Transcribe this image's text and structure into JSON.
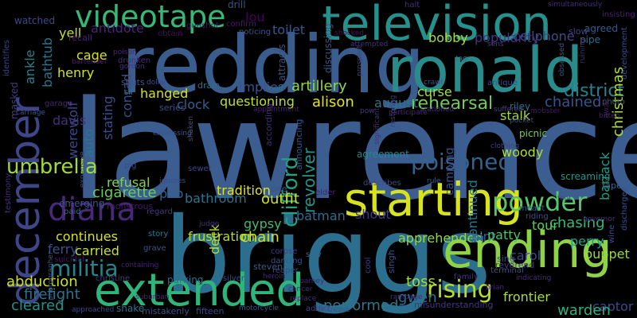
{
  "words": [
    {
      "text": "lawrence",
      "color": "#3b5d8f"
    },
    {
      "text": "briggs",
      "color": "#2c6e8e"
    },
    {
      "text": "redding",
      "color": "#3a5d8e"
    },
    {
      "text": "ronald",
      "color": "#2a8b8b"
    },
    {
      "text": "television",
      "color": "#25908c"
    },
    {
      "text": "starting",
      "color": "#d7e31f"
    },
    {
      "text": "ending",
      "color": "#8ed247"
    },
    {
      "text": "extended",
      "color": "#2fb47c"
    },
    {
      "text": "december",
      "color": "#3f4688"
    },
    {
      "text": "videotape",
      "color": "#37b778"
    },
    {
      "text": "diana",
      "color": "#482879"
    },
    {
      "text": "powder",
      "color": "#56c667"
    },
    {
      "text": "rising",
      "color": "#b5de2b"
    },
    {
      "text": "poisoned",
      "color": "#33638d"
    },
    {
      "text": "militia",
      "color": "#24868e"
    },
    {
      "text": "umbrella",
      "color": "#a0da39"
    },
    {
      "text": "frustration",
      "color": "#b8de29"
    },
    {
      "text": "apprehended",
      "color": "#95d840"
    },
    {
      "text": "clifford",
      "color": "#1fa188"
    },
    {
      "text": "revolver",
      "color": "#1f958b"
    },
    {
      "text": "rehearsal",
      "color": "#6ece58"
    },
    {
      "text": "artillery",
      "color": "#8ed645"
    },
    {
      "text": "questioning",
      "color": "#c2df23"
    },
    {
      "text": "tradition",
      "color": "#e2e418"
    },
    {
      "text": "alison",
      "color": "#e5e419"
    },
    {
      "text": "cellphone",
      "color": "#3e4a89"
    },
    {
      "text": "district",
      "color": "#26828e"
    },
    {
      "text": "chained",
      "color": "#3b528b"
    },
    {
      "text": "christmas",
      "color": "#b2dd2d"
    },
    {
      "text": "barrack",
      "color": "#1f9e89"
    },
    {
      "text": "chasing",
      "color": "#35b779"
    },
    {
      "text": "tour",
      "color": "#5ec962"
    },
    {
      "text": "perry",
      "color": "#1fa088"
    },
    {
      "text": "puppet",
      "color": "#9bd93c"
    },
    {
      "text": "frontier",
      "color": "#aadc32"
    },
    {
      "text": "captor",
      "color": "#3f4788"
    },
    {
      "text": "warden",
      "color": "#2db27d"
    },
    {
      "text": "gwen",
      "color": "#2d708e"
    },
    {
      "text": "performed",
      "color": "#2a788e"
    },
    {
      "text": "toss",
      "color": "#a2da37"
    },
    {
      "text": "abduction",
      "color": "#d0e11c"
    },
    {
      "text": "firefight",
      "color": "#2c738e"
    },
    {
      "text": "cleared",
      "color": "#21918c"
    },
    {
      "text": "carried",
      "color": "#c8e020"
    },
    {
      "text": "continues",
      "color": "#d8e219"
    },
    {
      "text": "ferry",
      "color": "#3b518b"
    },
    {
      "text": "cigarette",
      "color": "#69cd5b"
    },
    {
      "text": "refusal",
      "color": "#81d34d"
    },
    {
      "text": "outfit",
      "color": "#cde11d"
    },
    {
      "text": "batman",
      "color": "#2f6c8e"
    },
    {
      "text": "shout",
      "color": "#443983"
    },
    {
      "text": "gypsy",
      "color": "#3dbc74"
    },
    {
      "text": "chain",
      "color": "#d2e21b"
    },
    {
      "text": "deck",
      "color": "#b5de2b"
    },
    {
      "text": "bathroom",
      "color": "#2c738e"
    },
    {
      "text": "pub",
      "color": "#33628d"
    },
    {
      "text": "hanged",
      "color": "#d8e219"
    },
    {
      "text": "clock",
      "color": "#355f8d"
    },
    {
      "text": "implies",
      "color": "#39558c"
    },
    {
      "text": "stating",
      "color": "#3e4c8a"
    },
    {
      "text": "auto",
      "color": "#2a768e"
    },
    {
      "text": "werewolf",
      "color": "#3e4989"
    },
    {
      "text": "davis",
      "color": "#46317e"
    },
    {
      "text": "henry",
      "color": "#d2e21b"
    },
    {
      "text": "cage",
      "color": "#d8e219"
    },
    {
      "text": "yell",
      "color": "#c5e021"
    },
    {
      "text": "bathtub",
      "color": "#2a788e"
    },
    {
      "text": "ankle",
      "color": "#277f8e"
    },
    {
      "text": "lou",
      "color": "#440154"
    },
    {
      "text": "antidote",
      "color": "#482475"
    },
    {
      "text": "bobby",
      "color": "#a8db34"
    },
    {
      "text": "popularity",
      "color": "#46337f"
    },
    {
      "text": "toilet",
      "color": "#39568c"
    },
    {
      "text": "august",
      "color": "#2b748e"
    },
    {
      "text": "curse",
      "color": "#a5db36"
    },
    {
      "text": "stalk",
      "color": "#a0da39"
    },
    {
      "text": "conrad",
      "color": "#3c4f8a"
    },
    {
      "text": "woody",
      "color": "#b0dd2f"
    },
    {
      "text": "hint",
      "color": "#32658e"
    },
    {
      "text": "patty",
      "color": "#4ac16d"
    },
    {
      "text": "carol",
      "color": "#3e4989"
    },
    {
      "text": "continued",
      "color": "#29798e"
    },
    {
      "text": "camping",
      "color": "#3b518b"
    },
    {
      "text": "screaming",
      "color": "#1f978b"
    },
    {
      "text": "picnic",
      "color": "#73d056"
    },
    {
      "text": "agreement",
      "color": "#23888e"
    },
    {
      "text": "drill",
      "color": "#3b528b"
    },
    {
      "text": "watched",
      "color": "#3e4a89"
    },
    {
      "text": "recall",
      "color": "#482576"
    },
    {
      "text": "obtain",
      "color": "#470e61"
    },
    {
      "text": "gunshot",
      "color": "#481b6d"
    },
    {
      "text": "confirm",
      "color": "#481a6c"
    },
    {
      "text": "noticing",
      "color": "#3b528b"
    },
    {
      "text": "attracts",
      "color": "#3e4c8a"
    },
    {
      "text": "discussing",
      "color": "#3a548c"
    },
    {
      "text": "agreed",
      "color": "#375a8c"
    },
    {
      "text": "slow",
      "color": "#414487"
    },
    {
      "text": "pipe",
      "color": "#2f6c8e"
    },
    {
      "text": "tape",
      "color": "#31668e"
    },
    {
      "text": "halt",
      "color": "#46307e"
    },
    {
      "text": "simultaneously",
      "color": "#482979"
    },
    {
      "text": "insisting",
      "color": "#482173"
    },
    {
      "text": "development",
      "color": "#3e4a89"
    },
    {
      "text": "identifies",
      "color": "#424086"
    },
    {
      "text": "bartender",
      "color": "#481d6f"
    },
    {
      "text": "poison",
      "color": "#482777"
    },
    {
      "text": "drunken",
      "color": "#472d7b"
    },
    {
      "text": "gordon",
      "color": "#46327e"
    },
    {
      "text": "shocked",
      "color": "#471063"
    },
    {
      "text": "attempted",
      "color": "#46307e"
    },
    {
      "text": "prospect",
      "color": "#433e85"
    },
    {
      "text": "tag",
      "color": "#2e6e8e"
    },
    {
      "text": "sens",
      "color": "#443a83"
    },
    {
      "text": "obsessed",
      "color": "#38588c"
    },
    {
      "text": "ruining",
      "color": "#472c7a"
    },
    {
      "text": "carriage",
      "color": "#3a548c"
    },
    {
      "text": "garage",
      "color": "#482677"
    },
    {
      "text": "masked",
      "color": "#433d84"
    },
    {
      "text": "testimony",
      "color": "#472c7a"
    },
    {
      "text": "photographer",
      "color": "#39568c"
    },
    {
      "text": "expensive",
      "color": "#3f4788"
    },
    {
      "text": "shuts",
      "color": "#3b528b"
    },
    {
      "text": "sir",
      "color": "#2c718e"
    },
    {
      "text": "series",
      "color": "#3c4f8a"
    },
    {
      "text": "dollar",
      "color": "#3d4e8a"
    },
    {
      "text": "drain",
      "color": "#2e6f8e"
    },
    {
      "text": "loud",
      "color": "#2a788e"
    },
    {
      "text": "appointment",
      "color": "#481f70"
    },
    {
      "text": "participate",
      "color": "#482576"
    },
    {
      "text": "crawl",
      "color": "#3b528b"
    },
    {
      "text": "antique",
      "color": "#3e4c8a"
    },
    {
      "text": "riley",
      "color": "#2d718e"
    },
    {
      "text": "photo",
      "color": "#3a548c"
    },
    {
      "text": "mobster",
      "color": "#481668"
    },
    {
      "text": "await",
      "color": "#481b6d"
    },
    {
      "text": "bitten",
      "color": "#482071"
    },
    {
      "text": "stationed",
      "color": "#472a7a"
    },
    {
      "text": "pow",
      "color": "#443983"
    },
    {
      "text": "restoring",
      "color": "#453781"
    },
    {
      "text": "pocket",
      "color": "#3f4889"
    },
    {
      "text": "suffered",
      "color": "#424186"
    },
    {
      "text": "clothing",
      "color": "#433e85"
    },
    {
      "text": "significant",
      "color": "#472e7c"
    },
    {
      "text": "shaken",
      "color": "#3b528b"
    },
    {
      "text": "expressing",
      "color": "#39568c"
    },
    {
      "text": "announcing",
      "color": "#3a548c"
    },
    {
      "text": "according",
      "color": "#482878"
    },
    {
      "text": "pig",
      "color": "#3e4989"
    },
    {
      "text": "sewer",
      "color": "#404688"
    },
    {
      "text": "bee",
      "color": "#3b528b"
    },
    {
      "text": "elder",
      "color": "#482071"
    },
    {
      "text": "describes",
      "color": "#3e4989"
    },
    {
      "text": "rule",
      "color": "#35608d"
    },
    {
      "text": "emerging",
      "color": "#3b528b"
    },
    {
      "text": "paid",
      "color": "#31688e"
    },
    {
      "text": "monstrous",
      "color": "#481769"
    },
    {
      "text": "ignores",
      "color": "#3d4e8a"
    },
    {
      "text": "regard",
      "color": "#443983"
    },
    {
      "text": "story",
      "color": "#2a788e"
    },
    {
      "text": "grave",
      "color": "#3b528b"
    },
    {
      "text": "judge",
      "color": "#46307e"
    },
    {
      "text": "corpse",
      "color": "#433e85"
    },
    {
      "text": "dancing",
      "color": "#3a548c"
    },
    {
      "text": "reaper",
      "color": "#3f4889"
    },
    {
      "text": "saw",
      "color": "#2f6b8e"
    },
    {
      "text": "steven",
      "color": "#38598c"
    },
    {
      "text": "singh",
      "color": "#3e4c8a"
    },
    {
      "text": "terminal",
      "color": "#3d4e8a"
    },
    {
      "text": "meant",
      "color": "#35608d"
    },
    {
      "text": "riding",
      "color": "#3c4f8a"
    },
    {
      "text": "governor",
      "color": "#46307e"
    },
    {
      "text": "foot",
      "color": "#3e4a89"
    },
    {
      "text": "discharged",
      "color": "#3b528b"
    },
    {
      "text": "wine",
      "color": "#3e4c8a"
    },
    {
      "text": "indicating",
      "color": "#472c7a"
    },
    {
      "text": "reverend",
      "color": "#443a83"
    },
    {
      "text": "sing",
      "color": "#3e4a89"
    },
    {
      "text": "brian",
      "color": "#482677"
    },
    {
      "text": "cool",
      "color": "#424086"
    },
    {
      "text": "suicidal",
      "color": "#471365"
    },
    {
      "text": "containing",
      "color": "#482173"
    },
    {
      "text": "christine",
      "color": "#453882"
    },
    {
      "text": "parking",
      "color": "#2e6f8e"
    },
    {
      "text": "silver",
      "color": "#404588"
    },
    {
      "text": "heroin",
      "color": "#482475"
    },
    {
      "text": "barney",
      "color": "#482677"
    },
    {
      "text": "family",
      "color": "#46327e"
    },
    {
      "text": "rampage",
      "color": "#472c7a"
    },
    {
      "text": "misunderstanding",
      "color": "#453781"
    },
    {
      "text": "suburban",
      "color": "#482878"
    },
    {
      "text": "shake",
      "color": "#2d718e"
    },
    {
      "text": "mistakenly",
      "color": "#3b528b"
    },
    {
      "text": "approached",
      "color": "#3f4889"
    },
    {
      "text": "fifteen",
      "color": "#3e4989"
    },
    {
      "text": "motorcycle",
      "color": "#3a548c"
    },
    {
      "text": "cancer",
      "color": "#482677"
    },
    {
      "text": "replace",
      "color": "#472c7a"
    },
    {
      "text": "addict",
      "color": "#433e85"
    },
    {
      "text": "increase",
      "color": "#39568c"
    },
    {
      "text": "hall",
      "color": "#2e6e8e"
    }
  ]
}
